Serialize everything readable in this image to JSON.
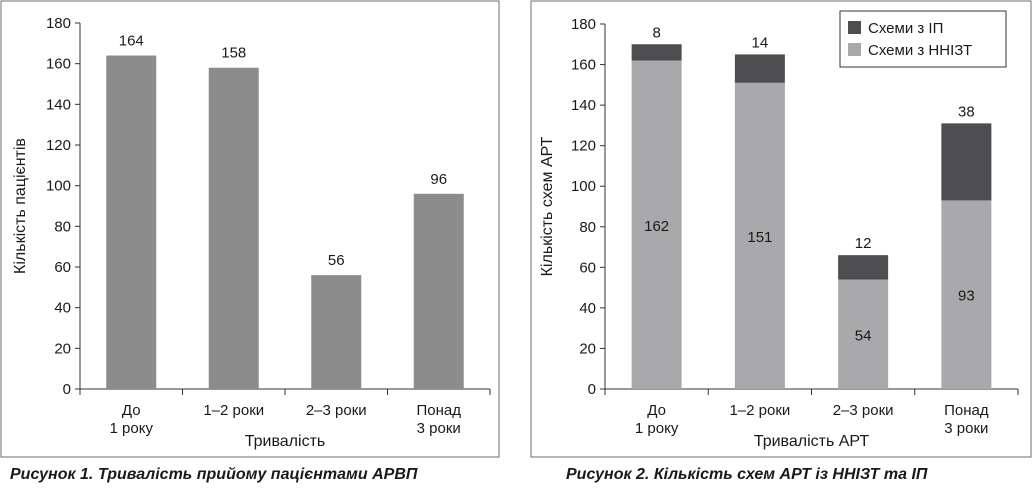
{
  "chart_data": [
    {
      "type": "bar",
      "categories": [
        "До 1 року",
        "1–2 роки",
        "2–3 роки",
        "Понад 3 роки"
      ],
      "values": [
        164,
        158,
        56,
        96
      ],
      "title": "",
      "xlabel": "Тривалість",
      "ylabel": "Кількість пацієнтів",
      "ylim": [
        0,
        180
      ],
      "yticks": [
        0,
        20,
        40,
        60,
        80,
        100,
        120,
        140,
        160,
        180
      ],
      "colors": [
        "#8c8c8c"
      ],
      "grid": false,
      "legend": "none"
    },
    {
      "type": "bar",
      "stacked": true,
      "categories": [
        "До 1 року",
        "1–2 роки",
        "2–3 роки",
        "Понад 3 роки"
      ],
      "series": [
        {
          "name": "Схеми з ННІЗТ",
          "values": [
            162,
            151,
            54,
            93
          ],
          "color": "#a9a9ab"
        },
        {
          "name": "Схеми з ІП",
          "values": [
            8,
            14,
            12,
            38
          ],
          "color": "#4d4d4f"
        }
      ],
      "title": "",
      "xlabel": "Тривалість АРТ",
      "ylabel": "Кількість схем АРТ",
      "ylim": [
        0,
        180
      ],
      "yticks": [
        0,
        20,
        40,
        60,
        80,
        100,
        120,
        140,
        160,
        180
      ],
      "grid": false,
      "legend": "top-right",
      "legend_order": [
        "Схеми з ІП",
        "Схеми з ННІЗТ"
      ]
    }
  ],
  "captions": [
    "Рисунок 1.  Тривалість прийому пацієнтами АРВП",
    "Рисунок 2.  Кількість схем АРТ із ННІЗТ та ІП"
  ]
}
